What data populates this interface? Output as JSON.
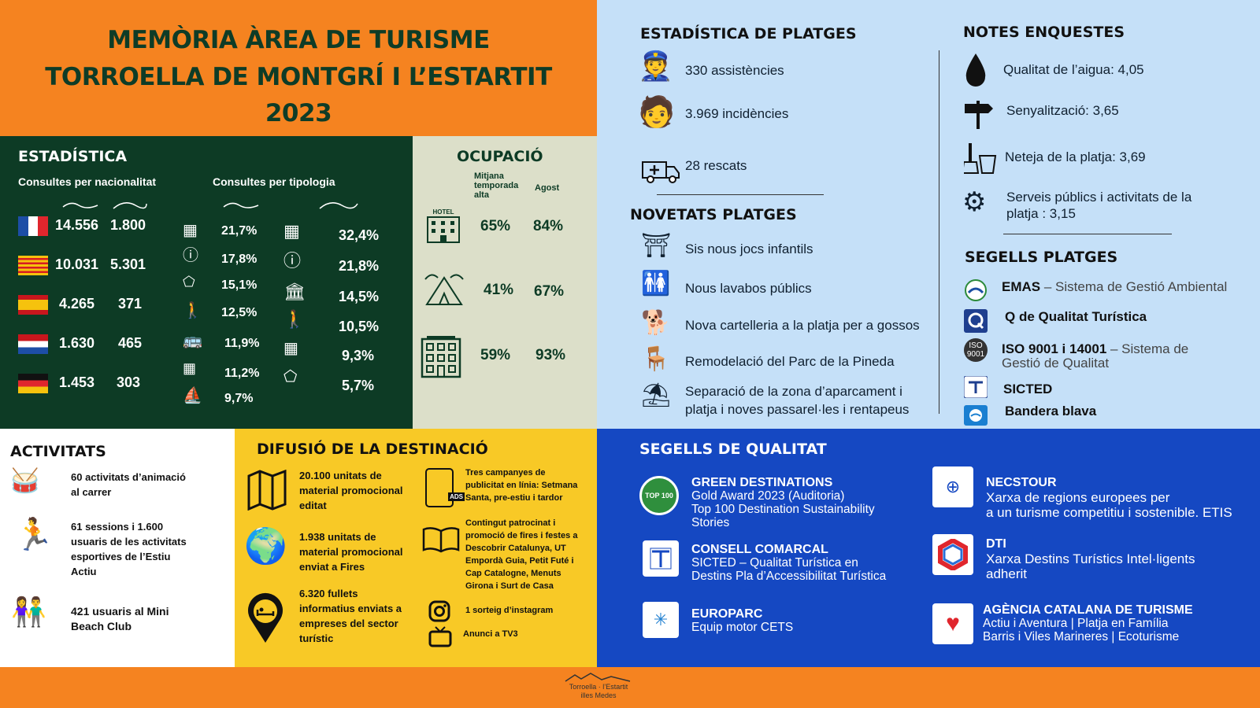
{
  "title": {
    "line1": "MEMÒRIA ÀREA DE TURISME",
    "line2": "TORROELLA DE MONTGRÍ I L’ESTARTIT",
    "line3": "2023"
  },
  "stats": {
    "heading": "ESTADÍSTICA",
    "nat_label": "Consultes per nacionalitat",
    "typ_label": "Consultes per tipologia",
    "nationality": [
      {
        "a": "14.556",
        "b": "1.800"
      },
      {
        "a": "10.031",
        "b": "5.301"
      },
      {
        "a": "4.265",
        "b": "371"
      },
      {
        "a": "1.630",
        "b": "465"
      },
      {
        "a": "1.453",
        "b": "303"
      }
    ],
    "type_col1": [
      "21,7%",
      "17,8%",
      "15,1%",
      "12,5%",
      "11,9%",
      "11,2%",
      "9,7%"
    ],
    "type_col2": [
      "32,4%",
      "21,8%",
      "14,5%",
      "10,5%",
      "9,3%",
      "5,7%"
    ]
  },
  "occ": {
    "heading": "OCUPACIÓ",
    "col1": "Mitjana temporada alta",
    "col2": "Agost",
    "hotel_label": "HOTEL",
    "rows": [
      {
        "a": "65%",
        "b": "84%"
      },
      {
        "a": "41%",
        "b": "67%"
      },
      {
        "a": "59%",
        "b": "93%"
      }
    ]
  },
  "beach_stats": {
    "heading": "ESTADÍSTICA DE PLATGES",
    "items": [
      "330 assistències",
      "3.969 incidències",
      "28 rescats"
    ]
  },
  "beach_news": {
    "heading": "NOVETATS PLATGES",
    "items": [
      "Sis nous jocs infantils",
      "Nous lavabos públics",
      "Nova cartelleria a la platja per a gossos",
      "Remodelació del Parc de la Pineda",
      "Separació de la zona d’aparcament i",
      "platja i noves passarel·les i rentapeus"
    ]
  },
  "surveys": {
    "heading": "NOTES ENQUESTES",
    "items": [
      "Qualitat de l’aigua: 4,05",
      "Senyalització: 3,65",
      "Neteja de la platja: 3,69",
      "Serveis públics i activitats de la",
      "platja : 3,15"
    ]
  },
  "beach_seals": {
    "heading": "SEGELLS PLATGES",
    "emas": "EMAS",
    "emas_desc": " – Sistema de Gestió Ambiental",
    "q": "Q de Qualitat Turística",
    "iso": "ISO 9001 i 14001",
    "iso_desc1": " – Sistema de",
    "iso_desc2": "Gestió de Qualitat",
    "sicted": "SICTED",
    "blue": "Bandera blava",
    "iso_logo": "ISO",
    "iso_logo2": "9001"
  },
  "activities": {
    "heading": "ACTIVITATS",
    "items": [
      [
        "60 activitats d’animació",
        "al carrer"
      ],
      [
        "61 sessions i 1.600",
        "usuaris de les activitats",
        "esportives de l’Estiu",
        "Actiu"
      ],
      [
        "421 usuaris al Mini",
        "Beach Club"
      ]
    ]
  },
  "diffusion": {
    "heading": "DIFUSIÓ DE LA DESTINACIÓ",
    "left": [
      [
        "20.100 unitats de",
        "material promocional",
        "editat"
      ],
      [
        "1.938 unitats de",
        "material promocional",
        "enviat a Fires"
      ],
      [
        "6.320 fullets",
        "informatius enviats a",
        "empreses del sector",
        "turístic"
      ]
    ],
    "right": [
      [
        "Tres campanyes de",
        "publicitat en línia: Setmana",
        "Santa, pre-estiu i tardor"
      ],
      [
        "Contingut patrocinat i",
        "promoció de fires i festes a",
        "Descobrir Catalunya, UT",
        "Empordà Guia, Petit Futé i",
        "Cap Catalogne, Menuts",
        "Girona i Surt de Casa"
      ],
      [
        "1 sorteig d’instagram"
      ],
      [
        "Anunci  a TV3"
      ]
    ],
    "ads": "ADS"
  },
  "quality": {
    "heading": "SEGELLS DE QUALITAT",
    "items": [
      {
        "name": "GREEN DESTINATIONS",
        "lines": [
          "Gold Award 2023 (Auditoria)",
          "Top 100 Destination Sustainability",
          "Stories"
        ]
      },
      {
        "name": "CONSELL COMARCAL",
        "lines": [
          "SICTED – Qualitat Turística en",
          "Destins  Pla d’Accessibilitat Turística"
        ]
      },
      {
        "name": "EUROPARC",
        "lines": [
          "Equip motor CETS"
        ]
      },
      {
        "name": "NECSTOUR",
        "lines": [
          "Xarxa de regions europees per",
          "a un turisme competitiu i sostenible. ETIS"
        ]
      },
      {
        "name": "DTI",
        "lines": [
          "Xarxa Destins Turístics Intel·ligents",
          "adherit"
        ]
      },
      {
        "name": "AGÈNCIA CATALANA DE TURISME",
        "lines": [
          "Actiu i Aventura | Platja en Família",
          "Barris i Viles Marineres | Ecoturisme"
        ]
      }
    ],
    "green_badge": "TOP 100"
  },
  "footer": {
    "line1": "Torroella · l’Estartit",
    "line2": "illes Medes"
  },
  "colors": {
    "orange": "#f58320",
    "dark_green": "#0d3b25",
    "light_blue": "#c5e0f8",
    "yellow": "#f8c926",
    "blue": "#1548c2"
  }
}
